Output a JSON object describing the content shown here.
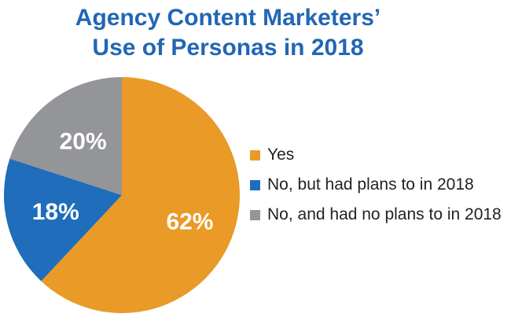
{
  "chart_data": {
    "type": "pie",
    "title": [
      "Agency Content Marketers’",
      "Use of Personas in 2018"
    ],
    "categories": [
      "Yes",
      "No, but had plans to in 2018",
      "No, and had no plans to in 2018"
    ],
    "values": [
      62,
      18,
      20
    ],
    "labels": [
      "62%",
      "18%",
      "20%"
    ],
    "colors": [
      "#e99a27",
      "#1f6dbb",
      "#939598"
    ],
    "legend_position": "right"
  }
}
